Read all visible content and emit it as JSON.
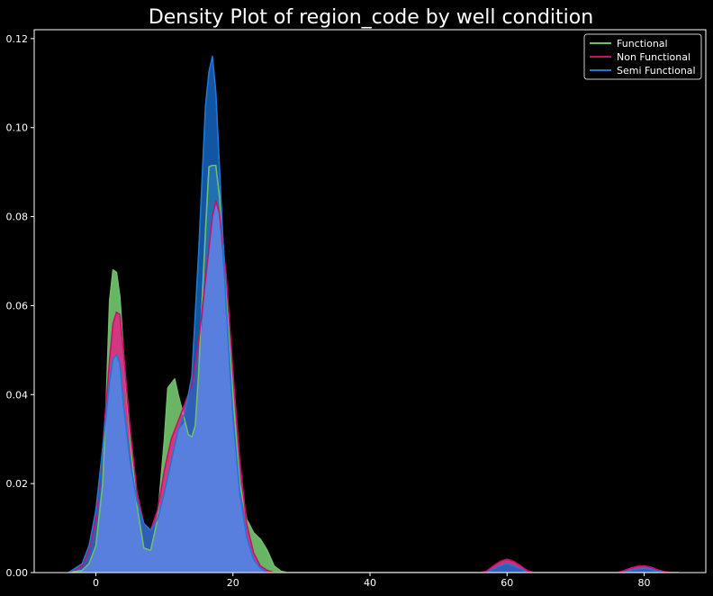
{
  "chart_data": {
    "type": "area",
    "title": "Density Plot of region_code by well condition",
    "xlabel": "",
    "ylabel": "",
    "xlim": [
      -9,
      89
    ],
    "ylim": [
      0,
      0.122
    ],
    "x_ticks": [
      0,
      20,
      40,
      60,
      80
    ],
    "y_ticks": [
      0.0,
      0.02,
      0.04,
      0.06,
      0.08,
      0.1,
      0.12
    ],
    "x_tick_labels": [
      "0",
      "20",
      "40",
      "60",
      "80"
    ],
    "y_tick_labels": [
      "0.00",
      "0.02",
      "0.04",
      "0.06",
      "0.08",
      "0.10",
      "0.12"
    ],
    "grid": false,
    "legend_position": "top-right",
    "background": "#000000",
    "series": [
      {
        "name": "Functional",
        "line_color": "#6fbf6a",
        "fill_color": "#6fbf6a",
        "fill_opacity": 0.95,
        "points": [
          [
            -4,
            0
          ],
          [
            -2,
            0.0005
          ],
          [
            -1,
            0.002
          ],
          [
            0,
            0.006
          ],
          [
            1,
            0.02
          ],
          [
            1.5,
            0.038
          ],
          [
            2,
            0.061
          ],
          [
            2.5,
            0.068
          ],
          [
            3,
            0.0675
          ],
          [
            3.5,
            0.062
          ],
          [
            4,
            0.05
          ],
          [
            5,
            0.03
          ],
          [
            6,
            0.015
          ],
          [
            7,
            0.0055
          ],
          [
            8,
            0.005
          ],
          [
            9,
            0.012
          ],
          [
            10,
            0.03
          ],
          [
            10.5,
            0.0415
          ],
          [
            11,
            0.0425
          ],
          [
            11.5,
            0.0435
          ],
          [
            12,
            0.04
          ],
          [
            13,
            0.034
          ],
          [
            13.5,
            0.031
          ],
          [
            14,
            0.0305
          ],
          [
            14.5,
            0.033
          ],
          [
            15,
            0.045
          ],
          [
            16,
            0.077
          ],
          [
            16.5,
            0.0912
          ],
          [
            17,
            0.0915
          ],
          [
            17.5,
            0.0915
          ],
          [
            18,
            0.085
          ],
          [
            19,
            0.065
          ],
          [
            20,
            0.04
          ],
          [
            21,
            0.02
          ],
          [
            22,
            0.012
          ],
          [
            23,
            0.009
          ],
          [
            24,
            0.0075
          ],
          [
            25,
            0.005
          ],
          [
            26,
            0.0015
          ],
          [
            27,
            0.0003
          ],
          [
            28,
            0
          ],
          [
            85,
            0
          ]
        ]
      },
      {
        "name": "Non Functional",
        "line_color": "#c8106a",
        "fill_color": "#d63384",
        "fill_opacity": 0.95,
        "points": [
          [
            -4,
            0
          ],
          [
            -2,
            0.0015
          ],
          [
            -1,
            0.005
          ],
          [
            0,
            0.012
          ],
          [
            1,
            0.028
          ],
          [
            2,
            0.048
          ],
          [
            2.5,
            0.056
          ],
          [
            3,
            0.0585
          ],
          [
            3.5,
            0.058
          ],
          [
            4,
            0.05
          ],
          [
            5,
            0.032
          ],
          [
            6,
            0.018
          ],
          [
            7,
            0.011
          ],
          [
            8,
            0.0095
          ],
          [
            9,
            0.014
          ],
          [
            10,
            0.023
          ],
          [
            11,
            0.03
          ],
          [
            12,
            0.034
          ],
          [
            13,
            0.038
          ],
          [
            14,
            0.042
          ],
          [
            15,
            0.052
          ],
          [
            16,
            0.066
          ],
          [
            17,
            0.08
          ],
          [
            17.5,
            0.0835
          ],
          [
            18,
            0.081
          ],
          [
            19,
            0.067
          ],
          [
            20,
            0.045
          ],
          [
            21,
            0.025
          ],
          [
            22,
            0.011
          ],
          [
            23,
            0.0045
          ],
          [
            24,
            0.0015
          ],
          [
            25,
            0.0005
          ],
          [
            26,
            0
          ],
          [
            56,
            0
          ],
          [
            57,
            0.0003
          ],
          [
            58,
            0.0015
          ],
          [
            59,
            0.0025
          ],
          [
            60,
            0.003
          ],
          [
            61,
            0.0025
          ],
          [
            62,
            0.0015
          ],
          [
            63,
            0.0004
          ],
          [
            64,
            0
          ],
          [
            76,
            0
          ],
          [
            77,
            0.0004
          ],
          [
            78,
            0.001
          ],
          [
            79,
            0.0014
          ],
          [
            80,
            0.0015
          ],
          [
            81,
            0.0012
          ],
          [
            82,
            0.0006
          ],
          [
            83,
            0.0002
          ],
          [
            84,
            0
          ],
          [
            85,
            0
          ]
        ]
      },
      {
        "name": "Semi Functional",
        "line_color": "#1f77d4",
        "fill_color": "#1565c0",
        "fill_opacity": 0.85,
        "points": [
          [
            -4,
            0
          ],
          [
            -2,
            0.002
          ],
          [
            -1,
            0.006
          ],
          [
            0,
            0.014
          ],
          [
            1,
            0.028
          ],
          [
            2,
            0.043
          ],
          [
            2.5,
            0.048
          ],
          [
            3,
            0.049
          ],
          [
            3.5,
            0.047
          ],
          [
            4,
            0.038
          ],
          [
            5,
            0.025
          ],
          [
            6,
            0.016
          ],
          [
            7,
            0.011
          ],
          [
            8,
            0.0095
          ],
          [
            9,
            0.012
          ],
          [
            10,
            0.018
          ],
          [
            11,
            0.025
          ],
          [
            12,
            0.032
          ],
          [
            13,
            0.036
          ],
          [
            14,
            0.044
          ],
          [
            15,
            0.072
          ],
          [
            16,
            0.105
          ],
          [
            16.5,
            0.1125
          ],
          [
            17,
            0.116
          ],
          [
            17.5,
            0.108
          ],
          [
            18,
            0.092
          ],
          [
            19,
            0.06
          ],
          [
            20,
            0.035
          ],
          [
            21,
            0.018
          ],
          [
            22,
            0.008
          ],
          [
            23,
            0.003
          ],
          [
            24,
            0.001
          ],
          [
            25,
            0
          ],
          [
            57,
            0
          ],
          [
            58,
            0.0008
          ],
          [
            59,
            0.0015
          ],
          [
            60,
            0.002
          ],
          [
            61,
            0.0015
          ],
          [
            62,
            0.0008
          ],
          [
            63,
            0
          ],
          [
            77,
            0
          ],
          [
            78,
            0.0005
          ],
          [
            79,
            0.0008
          ],
          [
            80,
            0.001
          ],
          [
            81,
            0.0008
          ],
          [
            82,
            0.0003
          ],
          [
            83,
            0
          ],
          [
            85,
            0
          ]
        ]
      }
    ],
    "overlap_fill_color": "#5b7fe0"
  }
}
